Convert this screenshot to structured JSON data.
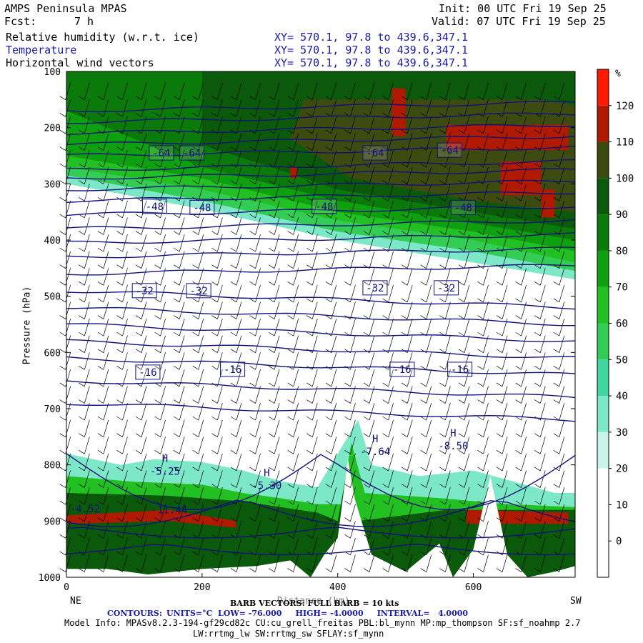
{
  "header": {
    "model": "AMPS Peninsula MPAS",
    "init": "Init: 00 UTC Fri 19 Sep 25",
    "fcst_label": "Fcst:",
    "fcst_value": "7 h",
    "valid": "Valid: 07 UTC Fri 19 Sep 25",
    "fields": [
      {
        "name": "Relative humidity (w.r.t. ice)",
        "xy": "XY= 570.1, 97.8 to 439.6,347.1"
      },
      {
        "name": "Temperature",
        "xy": "XY= 570.1, 97.8 to 439.6,347.1"
      },
      {
        "name": "Horizontal wind vectors",
        "xy": "XY= 570.1, 97.8 to 439.6,347.1"
      }
    ]
  },
  "colorbar": {
    "unit": "%",
    "levels": [
      0,
      10,
      20,
      30,
      40,
      50,
      60,
      70,
      80,
      90,
      100,
      110,
      120
    ],
    "colors": [
      "#ffffff",
      "#ffffff",
      "#ffffff",
      "#c8f5e8",
      "#7de8c8",
      "#3fd6a0",
      "#33cc55",
      "#22c022",
      "#0fa00f",
      "#0a7a0a",
      "#0b5a0b",
      "#3d4a10",
      "#b01a00",
      "#ff1a00"
    ]
  },
  "chart_data": {
    "type": "heatmap",
    "ylabel": "Pressure (hPa)",
    "yticks": [
      100,
      200,
      300,
      400,
      500,
      600,
      700,
      800,
      900,
      1000
    ],
    "xticks": [
      0,
      200,
      400,
      600
    ],
    "ylim": [
      1000,
      100
    ],
    "xlim": [
      0,
      750
    ],
    "x_end_labels": {
      "left": "NE",
      "right": "SW"
    },
    "xlabel": "Distance (km)",
    "temperature_contours": [
      {
        "value": "-64",
        "x": [
          140,
          185,
          455,
          565
        ],
        "p": [
          245,
          245,
          245,
          240
        ]
      },
      {
        "value": "-48",
        "x": [
          130,
          200,
          380,
          585
        ],
        "p": [
          340,
          342,
          340,
          342
        ]
      },
      {
        "value": "-32",
        "x": [
          115,
          195,
          455,
          560
        ],
        "p": [
          490,
          490,
          485,
          485
        ]
      },
      {
        "value": "-16",
        "x": [
          120,
          245,
          495,
          580
        ],
        "p": [
          635,
          630,
          630,
          630
        ]
      }
    ],
    "highs": [
      {
        "label": "H",
        "value": "-5.25",
        "x": 140,
        "p": 805
      },
      {
        "label": "H",
        "value": "-5.30",
        "x": 290,
        "p": 830
      },
      {
        "label": "H",
        "value": "-7.64",
        "x": 450,
        "p": 770
      },
      {
        "label": "H",
        "value": "-8.50",
        "x": 565,
        "p": 760
      }
    ],
    "other_labels": [
      {
        "value": "-11.44",
        "x": 125,
        "p": 880
      },
      {
        "value": "-4.52",
        "x": 5,
        "p": 878
      }
    ],
    "contour_info": {
      "units": "°C",
      "low": "-76.000",
      "high": "-4.0000",
      "interval": "4.0000"
    }
  },
  "footer": {
    "barb": "BARB VECTORS: FULL BARB = 10 kts",
    "contours_label": "CONTOURS:",
    "contours_rest": "UNITS=°C  LOW= -76.000     HIGH= -4.0000     INTERVAL=   4.0000",
    "model_info": "Model Info: MPASv8.2.3-194-gf29cd82c CU:cu_grell_freitas PBL:bl_mynn MP:mp_thompson SF:sf_noahmp 2.7",
    "model_info2": "LW:rrtmg_lw SW:rrtmg_sw SFLAY:sf_mynn"
  }
}
